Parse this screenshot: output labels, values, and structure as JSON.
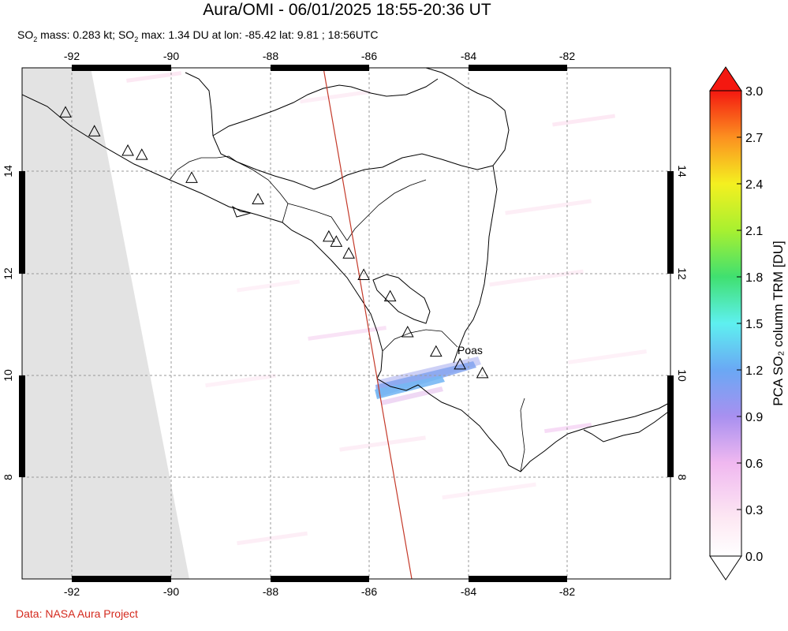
{
  "title": "Aura/OMI - 06/01/2025 18:55-20:36 UT",
  "subtitle": {
    "prefix": "SO",
    "sub1": "2",
    "mid1": " mass: 0.283 kt; SO",
    "sub2": "2",
    "mid2": " max: 1.34 DU at lon: -85.42 lat: 9.81 ; 18:56UTC"
  },
  "credit": "Data: NASA Aura Project",
  "map": {
    "lon_range": [
      -93,
      -80
    ],
    "lat_range": [
      6,
      16
    ],
    "lon_ticks": [
      "-92",
      "-90",
      "-88",
      "-86",
      "-84",
      "-82"
    ],
    "lat_ticks": [
      "8",
      "10",
      "12",
      "14"
    ],
    "volcano_label": "Poas",
    "volcanoes": [
      {
        "lon": -92.13,
        "lat": 15.13
      },
      {
        "lon": -91.55,
        "lat": 14.76
      },
      {
        "lon": -90.88,
        "lat": 14.38
      },
      {
        "lon": -90.6,
        "lat": 14.3
      },
      {
        "lon": -89.6,
        "lat": 13.85
      },
      {
        "lon": -88.27,
        "lat": 13.43
      },
      {
        "lon": -86.85,
        "lat": 12.7
      },
      {
        "lon": -86.7,
        "lat": 12.6
      },
      {
        "lon": -86.45,
        "lat": 12.37
      },
      {
        "lon": -86.15,
        "lat": 11.95
      },
      {
        "lon": -85.62,
        "lat": 11.53
      },
      {
        "lon": -85.27,
        "lat": 10.83
      },
      {
        "lon": -84.7,
        "lat": 10.45
      },
      {
        "lon": -84.22,
        "lat": 10.2
      },
      {
        "lon": -83.77,
        "lat": 10.03
      }
    ],
    "orbit_track": [
      {
        "lon": -86.8,
        "lat": 16.0
      },
      {
        "lon": -85.15,
        "lat": 6.0
      }
    ]
  },
  "colorbar": {
    "label": "PCA SO₂ column TRM [DU]",
    "ticks": [
      "3.0",
      "2.7",
      "2.4",
      "2.1",
      "1.8",
      "1.5",
      "1.2",
      "0.9",
      "0.6",
      "0.3",
      "0.0"
    ]
  },
  "colors": {
    "orbit": "#c43a2a",
    "credit": "#d42a1e",
    "nodata": "#e3e3e3"
  }
}
